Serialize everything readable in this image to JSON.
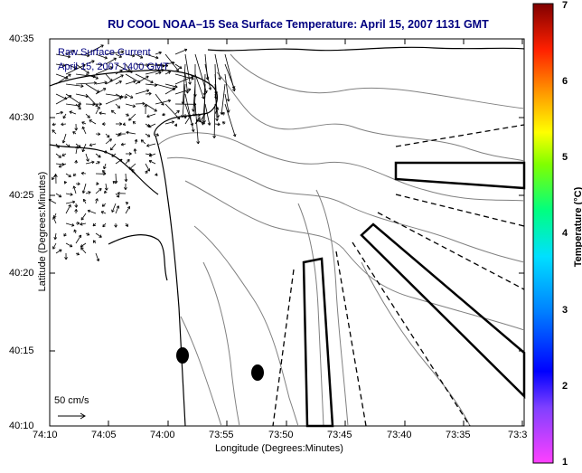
{
  "title": "RU COOL  NOAA–15  Sea Surface Temperature:  April 15, 2007 1131 GMT",
  "inset": {
    "line1": "Raw Surface Current",
    "line2": "April 15, 2007 1400 GMT"
  },
  "scale_label": "50 cm/s",
  "x_axis": {
    "title": "Longitude (Degrees:Minutes)",
    "ticks": [
      "74:10",
      "74:05",
      "74:00",
      "73:55",
      "73:50",
      "73:45",
      "73:40",
      "73:35",
      "73:3"
    ]
  },
  "y_axis": {
    "title": "Latitude (Degrees:Minutes)",
    "ticks": [
      "40:35",
      "40:30",
      "40:25",
      "40:20",
      "40:15",
      "40:10"
    ]
  },
  "colorbar": {
    "title": "Temperature (°C)",
    "ticks": [
      "7",
      "6",
      "5",
      "4",
      "3",
      "2",
      "1"
    ]
  },
  "colors": {
    "title": "#000080",
    "land": "#ffffff",
    "contour": "#808080"
  }
}
